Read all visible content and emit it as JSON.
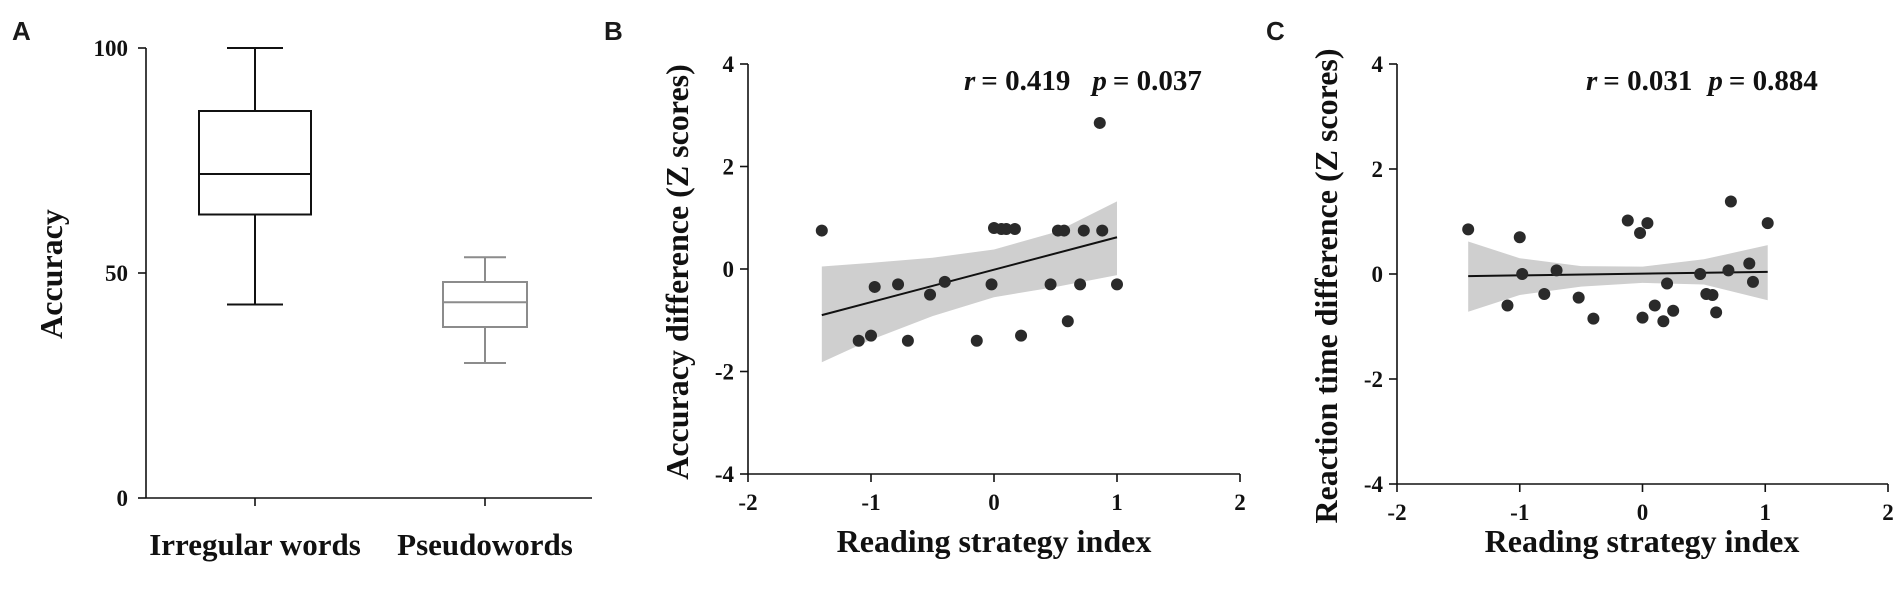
{
  "chart_data": [
    {
      "panel": "A",
      "type": "box",
      "xlabel": "",
      "ylabel": "Accuracy",
      "ylim": [
        0,
        100
      ],
      "yticks": [
        0,
        50,
        100
      ],
      "categories": [
        "Irregular words",
        "Pseudowords"
      ],
      "boxes": [
        {
          "min": 43,
          "q1": 63,
          "median": 72,
          "q3": 86,
          "max": 100,
          "color": "#111111"
        },
        {
          "min": 30,
          "q1": 38,
          "median": 43.5,
          "q3": 48,
          "max": 53.5,
          "color": "#8c8c8c"
        }
      ]
    },
    {
      "panel": "B",
      "type": "scatter",
      "xlabel": "Reading strategy index",
      "ylabel": "Accuracy difference (Z scores)",
      "xlim": [
        -2,
        2
      ],
      "ylim": [
        -4,
        4
      ],
      "xticks": [
        -2,
        -1,
        0,
        1,
        2
      ],
      "yticks": [
        -4,
        -2,
        0,
        2,
        4
      ],
      "stats": {
        "r_label": "r",
        "r_value": "= 0.419",
        "p_label": "p",
        "p_value": "= 0.037"
      },
      "points": [
        [
          -1.4,
          0.75
        ],
        [
          -1.1,
          -1.4
        ],
        [
          -1.0,
          -1.3
        ],
        [
          -0.97,
          -0.35
        ],
        [
          -0.78,
          -0.3
        ],
        [
          -0.7,
          -1.4
        ],
        [
          -0.52,
          -0.5
        ],
        [
          -0.4,
          -0.25
        ],
        [
          -0.14,
          -1.4
        ],
        [
          -0.02,
          -0.3
        ],
        [
          0.0,
          0.8
        ],
        [
          0.06,
          0.78
        ],
        [
          0.1,
          0.78
        ],
        [
          0.17,
          0.78
        ],
        [
          0.22,
          -1.3
        ],
        [
          0.46,
          -0.3
        ],
        [
          0.52,
          0.75
        ],
        [
          0.57,
          0.75
        ],
        [
          0.6,
          -1.02
        ],
        [
          0.7,
          -0.3
        ],
        [
          0.73,
          0.75
        ],
        [
          0.86,
          2.85
        ],
        [
          0.88,
          0.75
        ],
        [
          1.0,
          -0.3
        ]
      ],
      "fit": {
        "x": [
          -1.4,
          1.0
        ],
        "y": [
          -0.9,
          0.62
        ]
      },
      "ci": {
        "x": [
          -1.4,
          -1.0,
          -0.5,
          0.0,
          0.5,
          1.0
        ],
        "upper": [
          0.05,
          0.12,
          0.22,
          0.38,
          0.72,
          1.32
        ],
        "lower": [
          -1.82,
          -1.38,
          -0.92,
          -0.55,
          -0.35,
          -0.12
        ]
      }
    },
    {
      "panel": "C",
      "type": "scatter",
      "xlabel": "Reading strategy index",
      "ylabel": "Reaction time  difference (Z scores)",
      "xlim": [
        -2,
        2
      ],
      "ylim": [
        -4,
        4
      ],
      "xticks": [
        -2,
        -1,
        0,
        1,
        2
      ],
      "yticks": [
        -4,
        -2,
        0,
        2,
        4
      ],
      "stats": {
        "r_label": "r",
        "r_value": "= 0.031",
        "p_label": "p",
        "p_value": "= 0.884"
      },
      "points": [
        [
          -1.42,
          0.85
        ],
        [
          -1.1,
          -0.6
        ],
        [
          -1.0,
          0.7
        ],
        [
          -0.98,
          0.0
        ],
        [
          -0.8,
          -0.38
        ],
        [
          -0.7,
          0.07
        ],
        [
          -0.52,
          -0.45
        ],
        [
          -0.4,
          -0.85
        ],
        [
          -0.12,
          1.02
        ],
        [
          -0.02,
          0.78
        ],
        [
          0.0,
          -0.83
        ],
        [
          0.04,
          0.97
        ],
        [
          0.1,
          -0.6
        ],
        [
          0.17,
          -0.9
        ],
        [
          0.2,
          -0.18
        ],
        [
          0.25,
          -0.7
        ],
        [
          0.47,
          0.0
        ],
        [
          0.52,
          -0.38
        ],
        [
          0.57,
          -0.4
        ],
        [
          0.6,
          -0.73
        ],
        [
          0.7,
          0.07
        ],
        [
          0.72,
          1.38
        ],
        [
          0.87,
          0.2
        ],
        [
          0.9,
          -0.15
        ],
        [
          1.02,
          0.97
        ]
      ],
      "fit": {
        "x": [
          -1.42,
          1.02
        ],
        "y": [
          -0.04,
          0.04
        ]
      },
      "ci": {
        "x": [
          -1.42,
          -1.0,
          -0.5,
          0.0,
          0.5,
          1.02
        ],
        "upper": [
          0.62,
          0.3,
          0.15,
          0.14,
          0.28,
          0.55
        ],
        "lower": [
          -0.72,
          -0.4,
          -0.24,
          -0.17,
          -0.2,
          -0.5
        ]
      }
    }
  ],
  "panels": {
    "a": "A",
    "b": "B",
    "c": "C"
  },
  "colors": {
    "ci_band": "#cfcfcf",
    "points": "#2a2a2a",
    "line": "#111111"
  }
}
